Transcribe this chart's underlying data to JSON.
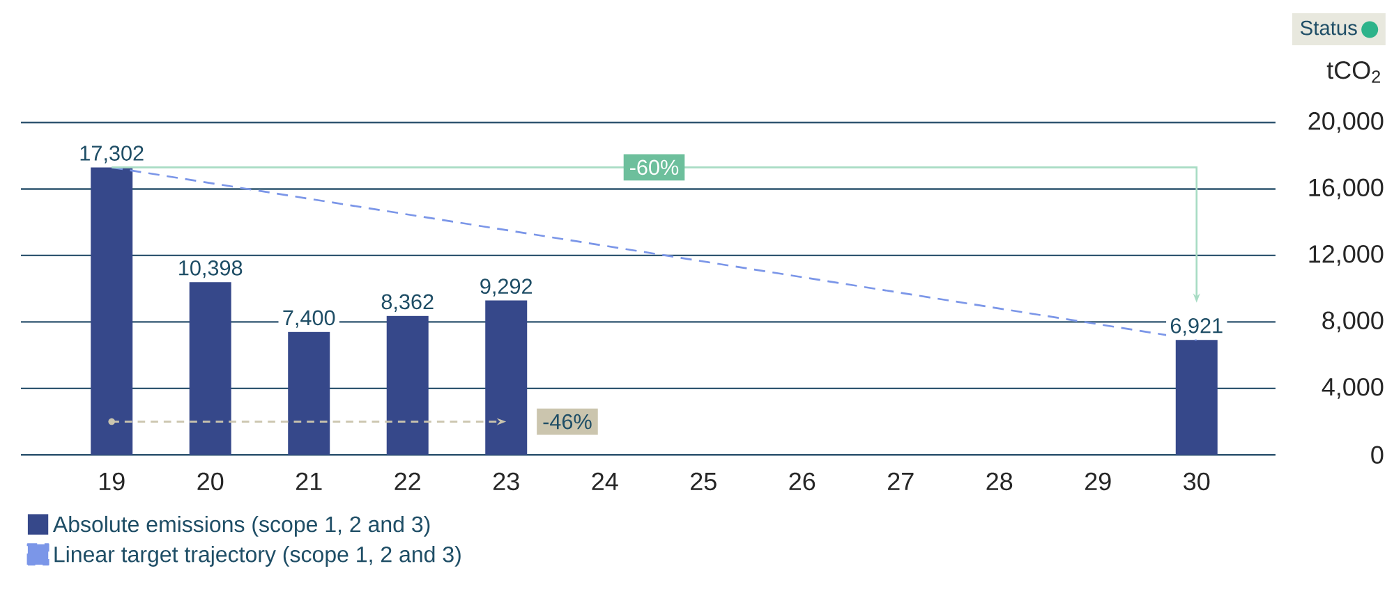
{
  "chart_data": {
    "type": "bar",
    "ylabel": "tCO$_{2}$",
    "categories": [
      "19",
      "20",
      "21",
      "22",
      "23",
      "24",
      "25",
      "26",
      "27",
      "28",
      "29",
      "30"
    ],
    "series": [
      {
        "name": "Absolute emissions (scope 1, 2 and 3)",
        "color": "#36488a",
        "values": [
          17302,
          10398,
          7400,
          8362,
          9292,
          null,
          null,
          null,
          null,
          null,
          null,
          6921
        ],
        "value_labels": [
          "17,302",
          "10,398",
          "7,400",
          "8,362",
          "9,292",
          null,
          null,
          null,
          null,
          null,
          null,
          "6,921"
        ]
      },
      {
        "name": "Linear target trajectory (scope 1, 2 and 3)",
        "type": "line",
        "color": "#7b96e8",
        "line_style": "dashed",
        "x": [
          "19",
          "30"
        ],
        "values": [
          17302,
          6921
        ]
      }
    ],
    "ylim": [
      0,
      20000
    ],
    "yticks": [
      0,
      {
        "value": 4000,
        "label": "4,000"
      },
      {
        "value": 8000,
        "label": "8,000"
      },
      {
        "value": 12000,
        "label": "12,000"
      },
      {
        "value": 16000,
        "label": "16,000"
      },
      {
        "value": 20000,
        "label": "20,000"
      }
    ],
    "grid": "y",
    "legend": "bottom left",
    "marker": "none",
    "annotations": [
      "-60%",
      "-46%",
      "Status"
    ]
  }
}
